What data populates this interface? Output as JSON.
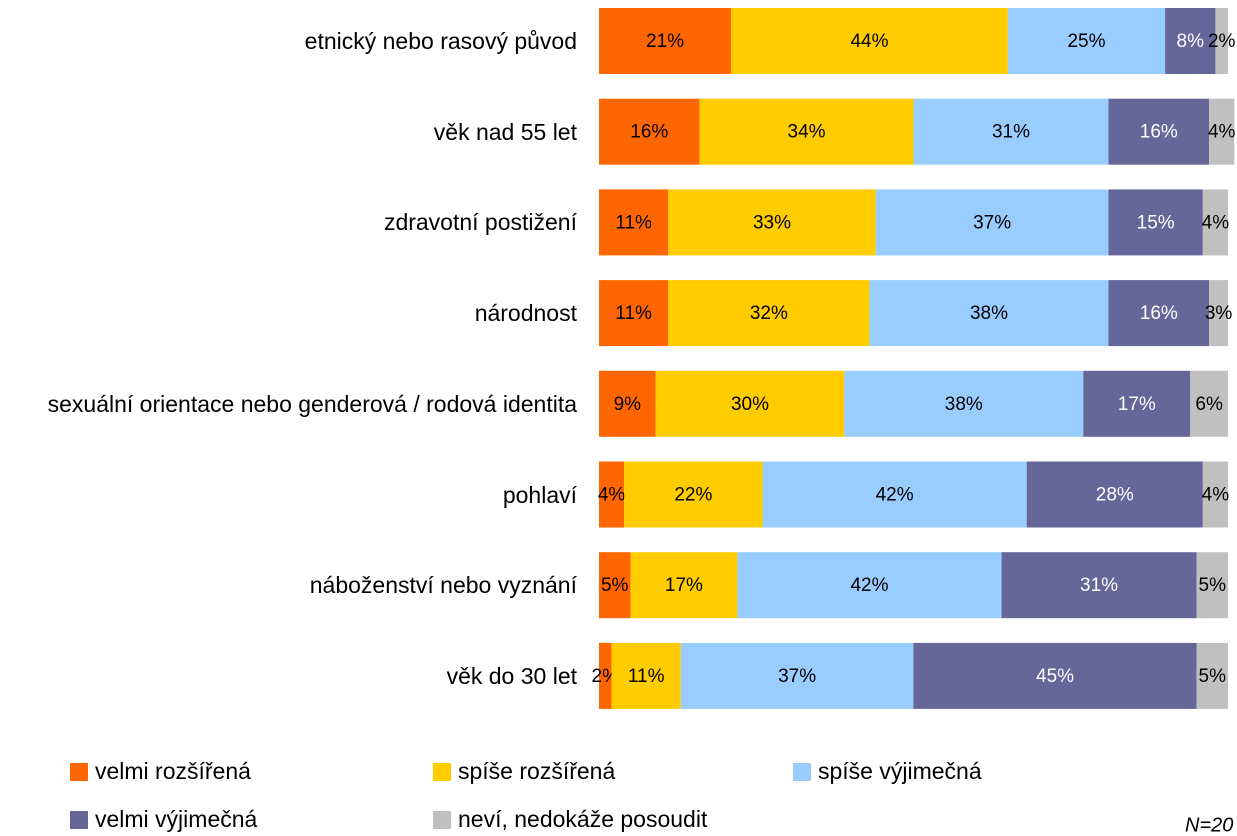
{
  "chart_data": {
    "type": "stacked-bar-horizontal",
    "categories": [
      "etnický nebo rasový původ",
      "věk nad 55 let",
      "zdravotní postižení",
      "národnost",
      "sexuální orientace nebo genderová / rodová identita",
      "pohlaví",
      "náboženství nebo vyznání",
      "věk do 30 let"
    ],
    "series": [
      {
        "name": "velmi rozšířená",
        "color": "#ff6600",
        "values": [
          21,
          16,
          11,
          11,
          9,
          4,
          5,
          2
        ],
        "value_labels": [
          "21%",
          "16%",
          "11%",
          "11%",
          "9%",
          "4%",
          "5%",
          "2%"
        ]
      },
      {
        "name": "spíše rozšířená",
        "color": "#ffcc00",
        "values": [
          44,
          34,
          33,
          32,
          30,
          22,
          17,
          11
        ],
        "value_labels": [
          "44%",
          "34%",
          "33%",
          "32%",
          "30%",
          "22%",
          "17%",
          "11%"
        ]
      },
      {
        "name": "spíše výjimečná",
        "color": "#99ccff",
        "values": [
          25,
          31,
          37,
          38,
          38,
          42,
          42,
          37
        ],
        "value_labels": [
          "25%",
          "31%",
          "37%",
          "38%",
          "38%",
          "42%",
          "42%",
          "37%"
        ]
      },
      {
        "name": "velmi výjimečná",
        "color": "#666699",
        "values": [
          8,
          16,
          15,
          16,
          17,
          28,
          31,
          45
        ],
        "value_labels": [
          "8%",
          "16%",
          "15%",
          "16%",
          "17%",
          "28%",
          "31%",
          "45%"
        ]
      },
      {
        "name": "neví, nedokáže posoudit",
        "color": "#c0c0c0",
        "values": [
          2,
          4,
          4,
          3,
          6,
          4,
          5,
          5
        ],
        "value_labels": [
          "2%",
          "4%",
          "4%",
          "3%",
          "6%",
          "4%",
          "5%",
          "5%"
        ]
      }
    ],
    "note": "N=20"
  }
}
